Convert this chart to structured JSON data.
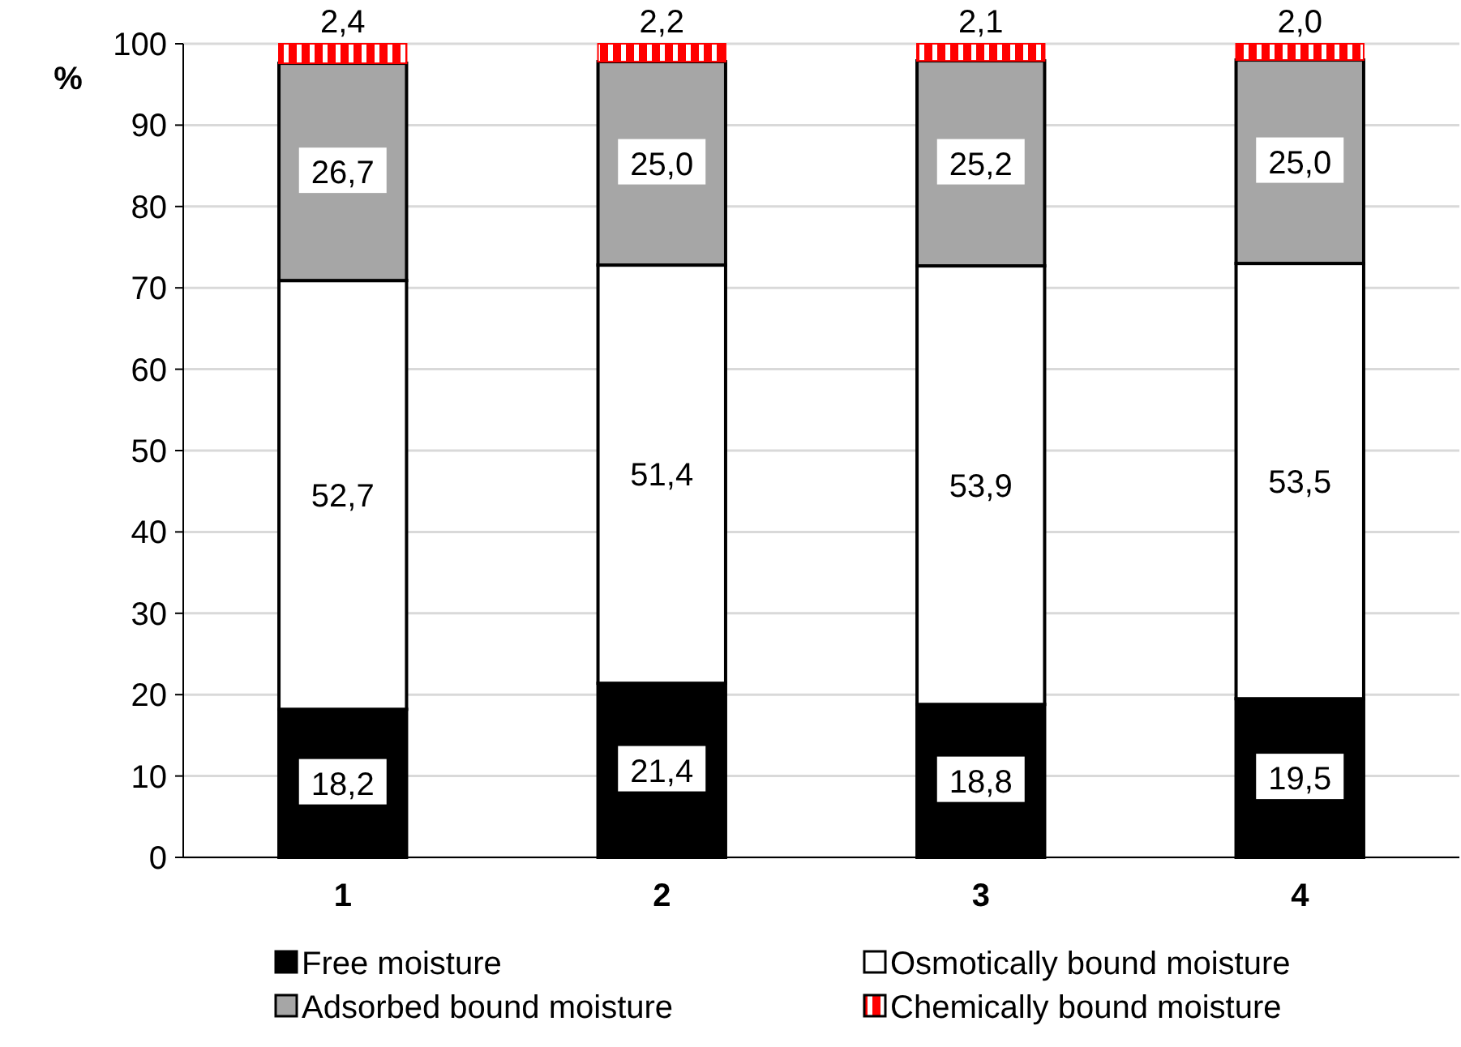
{
  "chart_data": {
    "type": "bar",
    "stacked": true,
    "ylabel": "%",
    "categories": [
      "1",
      "2",
      "3",
      "4"
    ],
    "ylim": [
      0,
      100
    ],
    "yticks": [
      0,
      10,
      20,
      30,
      40,
      50,
      60,
      70,
      80,
      90,
      100
    ],
    "grid": "y",
    "legend": "bottom",
    "series": [
      {
        "name": "Free moisture",
        "color": "#000000",
        "values": [
          18.2,
          21.4,
          18.8,
          19.5
        ],
        "value_labels": [
          "18,2",
          "21,4",
          "18,8",
          "19,5"
        ]
      },
      {
        "name": "Osmotically bound moisture",
        "color": "#ffffff",
        "values": [
          52.7,
          51.4,
          53.9,
          53.5
        ],
        "value_labels": [
          "52,7",
          "51,4",
          "53,9",
          "53,5"
        ]
      },
      {
        "name": "Adsorbed bound moisture",
        "color": "#a6a6a6",
        "values": [
          26.7,
          25.0,
          25.2,
          25.0
        ],
        "value_labels": [
          "26,7",
          "25,0",
          "25,2",
          "25,0"
        ]
      },
      {
        "name": "Chemically bound moisture",
        "color": "#ff0000",
        "values": [
          2.4,
          2.2,
          2.1,
          2.0
        ],
        "value_labels": [
          "2,4",
          "2,2",
          "2,1",
          "2,0"
        ]
      }
    ]
  }
}
